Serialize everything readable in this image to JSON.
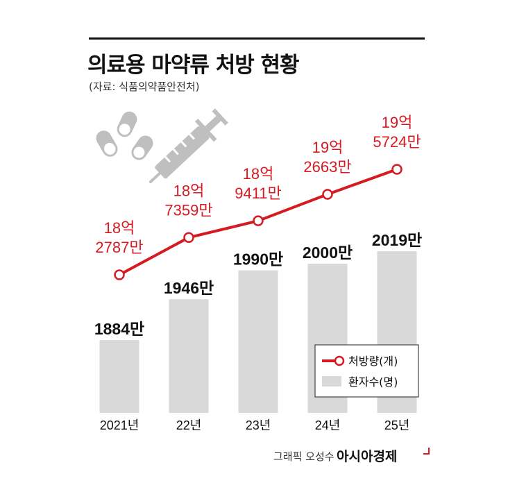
{
  "header": {
    "title": "의료용 마약류 처방 현황",
    "source": "(자료: 식품의약품안전처)"
  },
  "footer": {
    "credit": "그래픽 오성수",
    "brand": "아시아경제"
  },
  "colors": {
    "line": "#d71a21",
    "bar": "#d9d9d9",
    "text": "#111111",
    "illustration": "#bfbfbf"
  },
  "icons": [
    "pills-icon",
    "syringe-icon"
  ],
  "chart_data": {
    "type": "bar",
    "categories": [
      "2021년",
      "22년",
      "23년",
      "24년",
      "25년"
    ],
    "series": [
      {
        "name": "환자수(명)",
        "type": "bar",
        "values": [
          18840000,
          19460000,
          19900000,
          20000000,
          20190000
        ],
        "labels": [
          "1884만",
          "1946만",
          "1990만",
          "2000만",
          "2019만"
        ]
      },
      {
        "name": "처방량(개)",
        "type": "line",
        "values": [
          1827870000,
          1873590000,
          1894110000,
          1926630000,
          1957240000
        ],
        "labels": [
          [
            "18억",
            "2787만"
          ],
          [
            "18억",
            "7359만"
          ],
          [
            "18억",
            "9411만"
          ],
          [
            "19억",
            "2663만"
          ],
          [
            "19억",
            "5724만"
          ]
        ]
      }
    ],
    "legend": [
      "처방량(개)",
      "환자수(명)"
    ],
    "legend_position": "bottom-right",
    "grid": false
  }
}
